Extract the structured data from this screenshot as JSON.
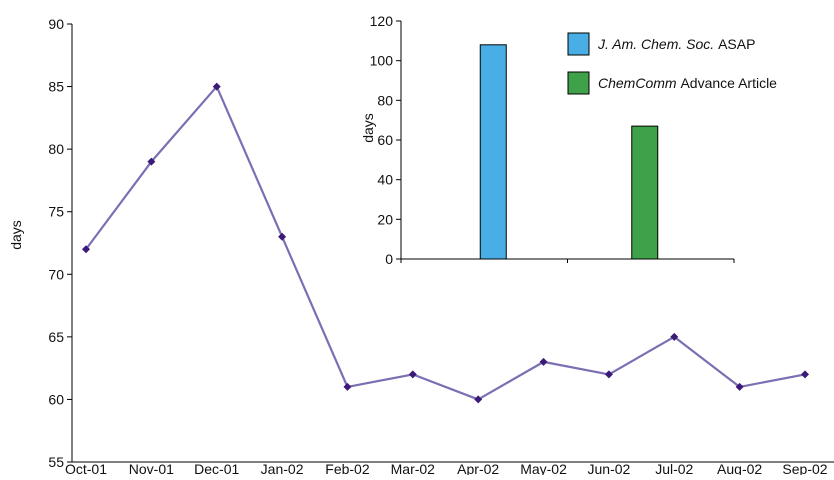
{
  "chart_data": [
    {
      "type": "line",
      "title": "",
      "xlabel": "",
      "ylabel": "days",
      "categories": [
        "Oct-01",
        "Nov-01",
        "Dec-01",
        "Jan-02",
        "Feb-02",
        "Mar-02",
        "Apr-02",
        "May-02",
        "Jun-02",
        "Jul-02",
        "Aug-02",
        "Sep-02"
      ],
      "series": [
        {
          "values": [
            72,
            79,
            85,
            73,
            61,
            62,
            60,
            63,
            62,
            65,
            61,
            62
          ],
          "color": "#7b6fb3",
          "marker_color": "#3b1a78"
        }
      ],
      "ylim": [
        55,
        90
      ],
      "yticks": [
        55,
        60,
        65,
        70,
        75,
        80,
        85,
        90
      ],
      "grid": false,
      "legend": "none"
    },
    {
      "type": "bar",
      "title": "",
      "xlabel": "",
      "ylabel": "days",
      "categories": [
        "J. Am. Chem. Soc. ASAP",
        "ChemComm Advance Article"
      ],
      "series": [
        {
          "values": [
            108,
            67
          ]
        }
      ],
      "colors": [
        "#4aaee6",
        "#3fa24a"
      ],
      "ylim": [
        0,
        120
      ],
      "yticks": [
        0,
        20,
        40,
        60,
        80,
        100,
        120
      ],
      "grid": false,
      "legend": "top-right",
      "legend_entries": [
        {
          "italic": "J. Am. Chem. Soc.",
          "plain": " ASAP",
          "color": "#4aaee6"
        },
        {
          "italic": "ChemComm",
          "plain": " Advance Article",
          "color": "#3fa24a"
        }
      ]
    }
  ]
}
